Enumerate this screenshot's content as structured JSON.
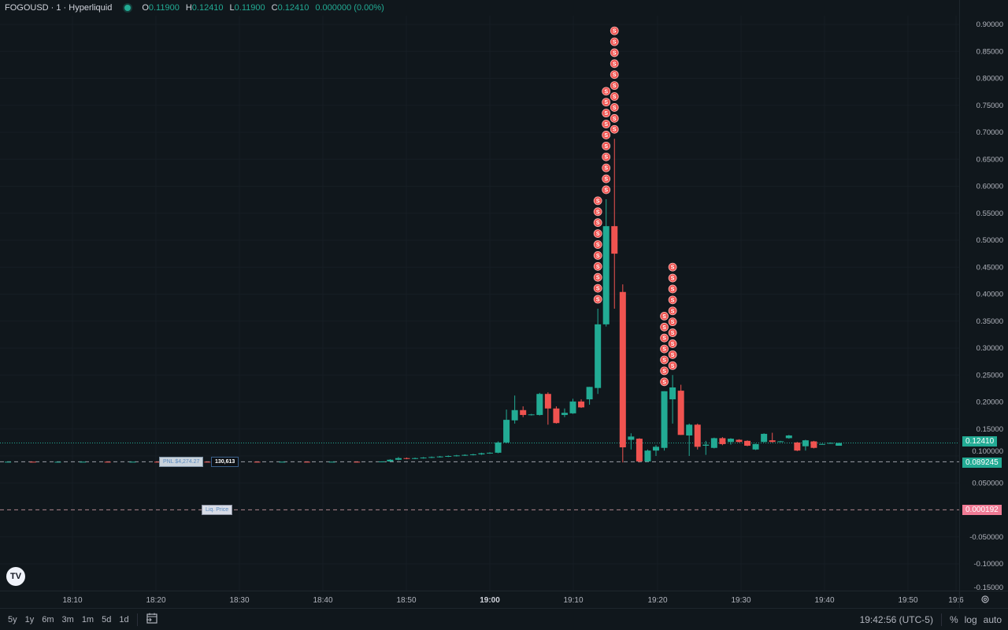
{
  "header": {
    "symbol": "FOGOUSD · 1 · Hyperliquid",
    "ohlc": [
      {
        "k": "O",
        "v": "0.11900"
      },
      {
        "k": "H",
        "v": "0.12410"
      },
      {
        "k": "L",
        "v": "0.11900"
      },
      {
        "k": "C",
        "v": "0.12410"
      }
    ],
    "change": "0.000000 (0.00%)",
    "status_color": "#22ab94"
  },
  "colors": {
    "up": "#22ab94",
    "down": "#f05350",
    "background": "#10171c",
    "marker": "#f05350"
  },
  "position": {
    "pnl_label": "PNL $4,274.27",
    "size_label": "130,613",
    "entry_price_label": "0.089245",
    "liq_label": "Liq. Price",
    "liq_price_label": "0.000192",
    "last_price_label": "0.12410"
  },
  "chart_data": {
    "type": "candlestick",
    "interval": "1m",
    "ylim": [
      -0.15,
      0.9
    ],
    "grid": true,
    "y_ticks": [
      "0.90000",
      "0.85000",
      "0.80000",
      "0.75000",
      "0.70000",
      "0.65000",
      "0.60000",
      "0.55000",
      "0.50000",
      "0.45000",
      "0.40000",
      "0.35000",
      "0.30000",
      "0.25000",
      "0.20000",
      "0.15000",
      "0.100000",
      "0.050000",
      "-0.050000",
      "-0.10000",
      "-0.15000"
    ],
    "y_tick_values": [
      0.9,
      0.85,
      0.8,
      0.75,
      0.7,
      0.65,
      0.6,
      0.55,
      0.5,
      0.45,
      0.4,
      0.35,
      0.3,
      0.25,
      0.2,
      0.15,
      0.1,
      0.05,
      -0.05,
      -0.1,
      -0.15
    ],
    "x_ticks": [
      "18:10",
      "18:20",
      "18:30",
      "18:40",
      "18:50",
      "19:00",
      "19:10",
      "19:20",
      "19:30",
      "19:40",
      "19:50",
      "19:6"
    ],
    "last_price": 0.1241,
    "entry_price": 0.089245,
    "liq_price": 0.000192,
    "candles": [
      [
        "18:02",
        0.0892,
        0.0894,
        0.0891,
        0.0893
      ],
      [
        "18:05",
        0.0893,
        0.0894,
        0.0891,
        0.0892
      ],
      [
        "18:08",
        0.0892,
        0.0893,
        0.0891,
        0.0892
      ],
      [
        "18:11",
        0.0892,
        0.0894,
        0.0891,
        0.0893
      ],
      [
        "18:14",
        0.0893,
        0.0894,
        0.0891,
        0.0892
      ],
      [
        "18:17",
        0.0892,
        0.0893,
        0.0891,
        0.0893
      ],
      [
        "18:20",
        0.0893,
        0.0894,
        0.0891,
        0.0892
      ],
      [
        "18:23",
        0.0892,
        0.0894,
        0.0891,
        0.0893
      ],
      [
        "18:26",
        0.0893,
        0.0894,
        0.0892,
        0.0892
      ],
      [
        "18:29",
        0.0892,
        0.0893,
        0.0891,
        0.0893
      ],
      [
        "18:32",
        0.0893,
        0.0894,
        0.0891,
        0.0892
      ],
      [
        "18:35",
        0.0892,
        0.0894,
        0.0891,
        0.0893
      ],
      [
        "18:38",
        0.0893,
        0.0894,
        0.0891,
        0.0892
      ],
      [
        "18:41",
        0.0892,
        0.0893,
        0.0891,
        0.0893
      ],
      [
        "18:44",
        0.0893,
        0.0894,
        0.0891,
        0.0892
      ],
      [
        "18:47",
        0.0892,
        0.09,
        0.0891,
        0.0898
      ],
      [
        "18:48",
        0.0898,
        0.094,
        0.0895,
        0.093
      ],
      [
        "18:49",
        0.093,
        0.098,
        0.092,
        0.096
      ],
      [
        "18:50",
        0.096,
        0.097,
        0.094,
        0.095
      ],
      [
        "18:51",
        0.095,
        0.097,
        0.094,
        0.096
      ],
      [
        "18:52",
        0.096,
        0.098,
        0.095,
        0.097
      ],
      [
        "18:53",
        0.097,
        0.099,
        0.096,
        0.098
      ],
      [
        "18:54",
        0.098,
        0.1,
        0.097,
        0.099
      ],
      [
        "18:55",
        0.099,
        0.101,
        0.098,
        0.1
      ],
      [
        "18:56",
        0.1,
        0.102,
        0.099,
        0.101
      ],
      [
        "18:57",
        0.101,
        0.103,
        0.1,
        0.102
      ],
      [
        "18:58",
        0.102,
        0.104,
        0.101,
        0.103
      ],
      [
        "18:59",
        0.103,
        0.106,
        0.102,
        0.105
      ],
      [
        "19:00",
        0.105,
        0.107,
        0.104,
        0.106
      ],
      [
        "19:01",
        0.106,
        0.127,
        0.105,
        0.125
      ],
      [
        "19:02",
        0.125,
        0.186,
        0.124,
        0.167
      ],
      [
        "19:03",
        0.166,
        0.212,
        0.16,
        0.185
      ],
      [
        "19:04",
        0.185,
        0.192,
        0.172,
        0.176
      ],
      [
        "19:05",
        0.176,
        0.178,
        0.175,
        0.177
      ],
      [
        "19:06",
        0.176,
        0.217,
        0.175,
        0.215
      ],
      [
        "19:07",
        0.215,
        0.218,
        0.158,
        0.188
      ],
      [
        "19:08",
        0.188,
        0.192,
        0.16,
        0.161
      ],
      [
        "19:09",
        0.176,
        0.188,
        0.172,
        0.18
      ],
      [
        "19:10",
        0.179,
        0.206,
        0.178,
        0.201
      ],
      [
        "19:11",
        0.201,
        0.205,
        0.189,
        0.19
      ],
      [
        "19:12",
        0.205,
        0.228,
        0.195,
        0.228
      ],
      [
        "19:13",
        0.226,
        0.373,
        0.215,
        0.344
      ],
      [
        "19:14",
        0.344,
        0.576,
        0.34,
        0.526
      ],
      [
        "19:15",
        0.526,
        0.688,
        0.373,
        0.475
      ],
      [
        "19:16",
        0.404,
        0.418,
        0.088,
        0.116
      ],
      [
        "19:17",
        0.13,
        0.142,
        0.112,
        0.136
      ],
      [
        "19:18",
        0.132,
        0.133,
        0.088,
        0.09
      ],
      [
        "19:19",
        0.09,
        0.112,
        0.089,
        0.11
      ],
      [
        "19:20",
        0.11,
        0.12,
        0.1,
        0.117
      ],
      [
        "19:21",
        0.115,
        0.22,
        0.11,
        0.22
      ],
      [
        "19:22",
        0.205,
        0.25,
        0.16,
        0.227
      ],
      [
        "19:23",
        0.221,
        0.232,
        0.139,
        0.139
      ],
      [
        "19:24",
        0.138,
        0.16,
        0.1,
        0.158
      ],
      [
        "19:25",
        0.158,
        0.16,
        0.112,
        0.117
      ],
      [
        "19:26",
        0.119,
        0.128,
        0.102,
        0.121
      ],
      [
        "19:27",
        0.115,
        0.134,
        0.114,
        0.133
      ],
      [
        "19:28",
        0.133,
        0.135,
        0.12,
        0.122
      ],
      [
        "19:29",
        0.126,
        0.133,
        0.121,
        0.132
      ],
      [
        "19:30",
        0.13,
        0.131,
        0.125,
        0.126
      ],
      [
        "19:31",
        0.128,
        0.129,
        0.118,
        0.119
      ],
      [
        "19:32",
        0.112,
        0.123,
        0.111,
        0.122
      ],
      [
        "19:33",
        0.126,
        0.142,
        0.125,
        0.141
      ],
      [
        "19:34",
        0.129,
        0.143,
        0.125,
        0.126
      ],
      [
        "19:35",
        0.127,
        0.128,
        0.126,
        0.1272
      ],
      [
        "19:36",
        0.133,
        0.139,
        0.132,
        0.138
      ],
      [
        "19:37",
        0.125,
        0.126,
        0.109,
        0.11
      ],
      [
        "19:38",
        0.118,
        0.13,
        0.11,
        0.129
      ],
      [
        "19:39",
        0.127,
        0.128,
        0.114,
        0.115
      ],
      [
        "19:40",
        0.122,
        0.123,
        0.121,
        0.1222
      ],
      [
        "19:41",
        0.124,
        0.125,
        0.123,
        0.1242
      ],
      [
        "19:42",
        0.119,
        0.1241,
        0.119,
        0.1241
      ]
    ],
    "sell_markers": [
      {
        "time": "19:13",
        "count": 10,
        "label": "S"
      },
      {
        "time": "19:14",
        "count": 10,
        "label": "S"
      },
      {
        "time": "19:15",
        "count": 10,
        "label": "S"
      },
      {
        "time": "19:21",
        "count": 7,
        "label": "S"
      },
      {
        "time": "19:22",
        "count": 10,
        "label": "S"
      }
    ]
  },
  "bottom": {
    "ranges": [
      "5y",
      "1y",
      "6m",
      "3m",
      "1m",
      "5d",
      "1d"
    ],
    "calendar_icon": "calendar-goto-icon",
    "clock": "19:42:56 (UTC-5)",
    "percent": "%",
    "log": "log",
    "auto": "auto",
    "settings_icon": "gear-icon"
  },
  "logo": "TV"
}
